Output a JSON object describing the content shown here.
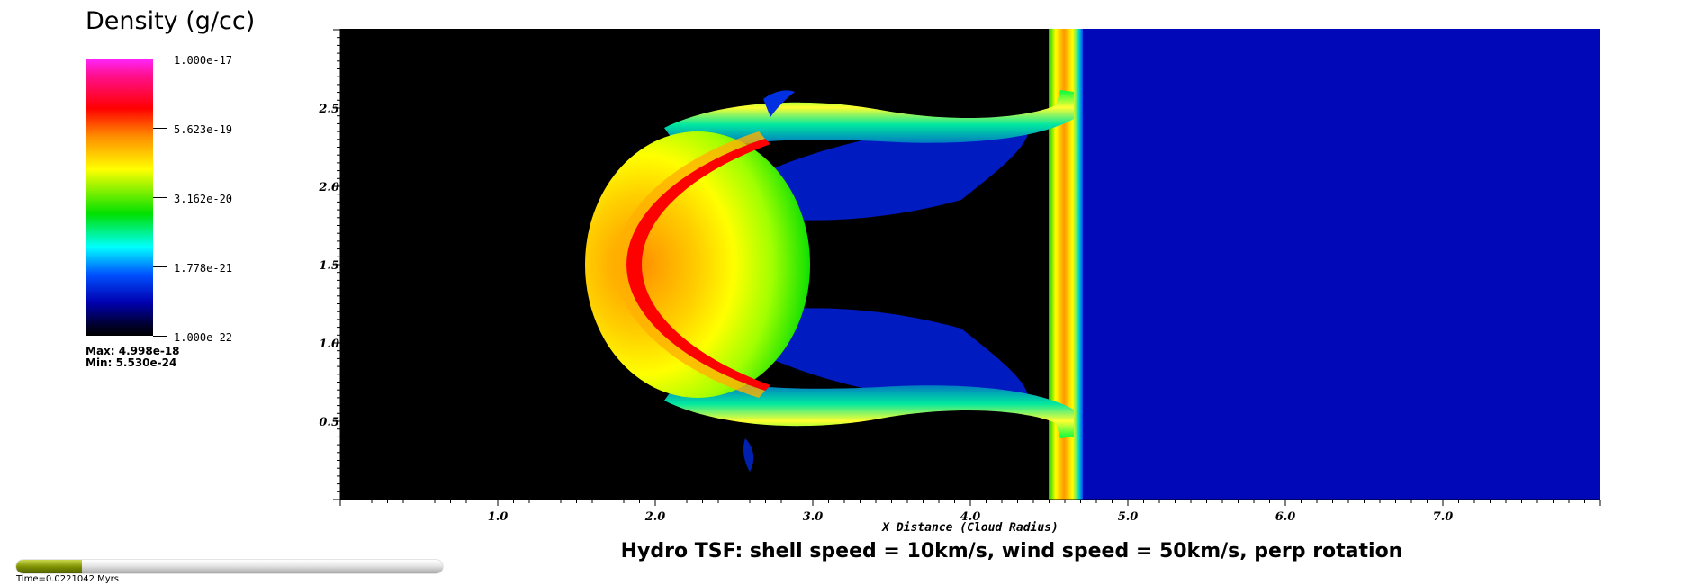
{
  "legend": {
    "title": "Density (g/cc)",
    "ticks": [
      "1.000e-17",
      "5.623e-19",
      "3.162e-20",
      "1.778e-21",
      "1.000e-22"
    ],
    "max_label": "Max:  4.998e-18",
    "min_label": "Min:  5.530e-24"
  },
  "plot": {
    "y_ticks": [
      "2.5",
      "2.0",
      "1.5",
      "1.0",
      "0.5"
    ],
    "x_ticks": [
      "1.0",
      "2.0",
      "3.0",
      "4.0",
      "5.0",
      "6.0",
      "7.0"
    ],
    "x_label": "X Distance (Cloud Radius)",
    "colors": {
      "background_region": "#000000",
      "wind_region": "#0008b8",
      "shell": "#ff0000"
    }
  },
  "caption": "Hydro TSF: shell speed = 10km/s, wind speed = 50km/s, perp rotation",
  "time": {
    "label": "Time=0.0221042 Myrs",
    "progress": 0.155
  }
}
